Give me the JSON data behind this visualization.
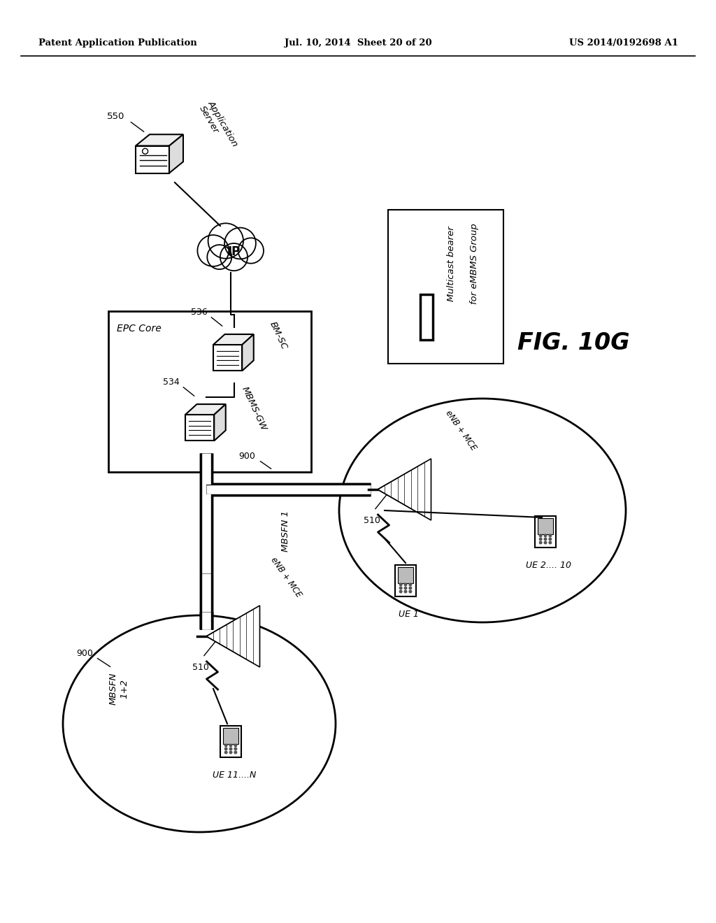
{
  "header_left": "Patent Application Publication",
  "header_mid": "Jul. 10, 2014  Sheet 20 of 20",
  "header_right": "US 2014/0192698 A1",
  "fig_label": "FIG. 10G",
  "legend_text1": "Multicast bearer",
  "legend_text2": "for eMBMS Group",
  "bg": "#ffffff",
  "app_server_label": "Application\nServer",
  "app_server_id": "550",
  "ip_label": "IP",
  "epc_label": "EPC Core",
  "bmsc_label": "BM-SC",
  "bmsc_id": "536",
  "mbmsgw_label": "MBMS-GW",
  "mbmsgw_id": "534",
  "mbsfn1_id": "900",
  "mbsfn1_label": "MBSFN 1",
  "mbsfn2_id": "900",
  "mbsfn2_label": "MBSFN\n1+2",
  "enb_label": "eNB + MCE",
  "enb_id": "510",
  "ue1_label": "UE 1",
  "ue2_label": "UE 2.... 10",
  "ue3_label": "UE 11....N"
}
